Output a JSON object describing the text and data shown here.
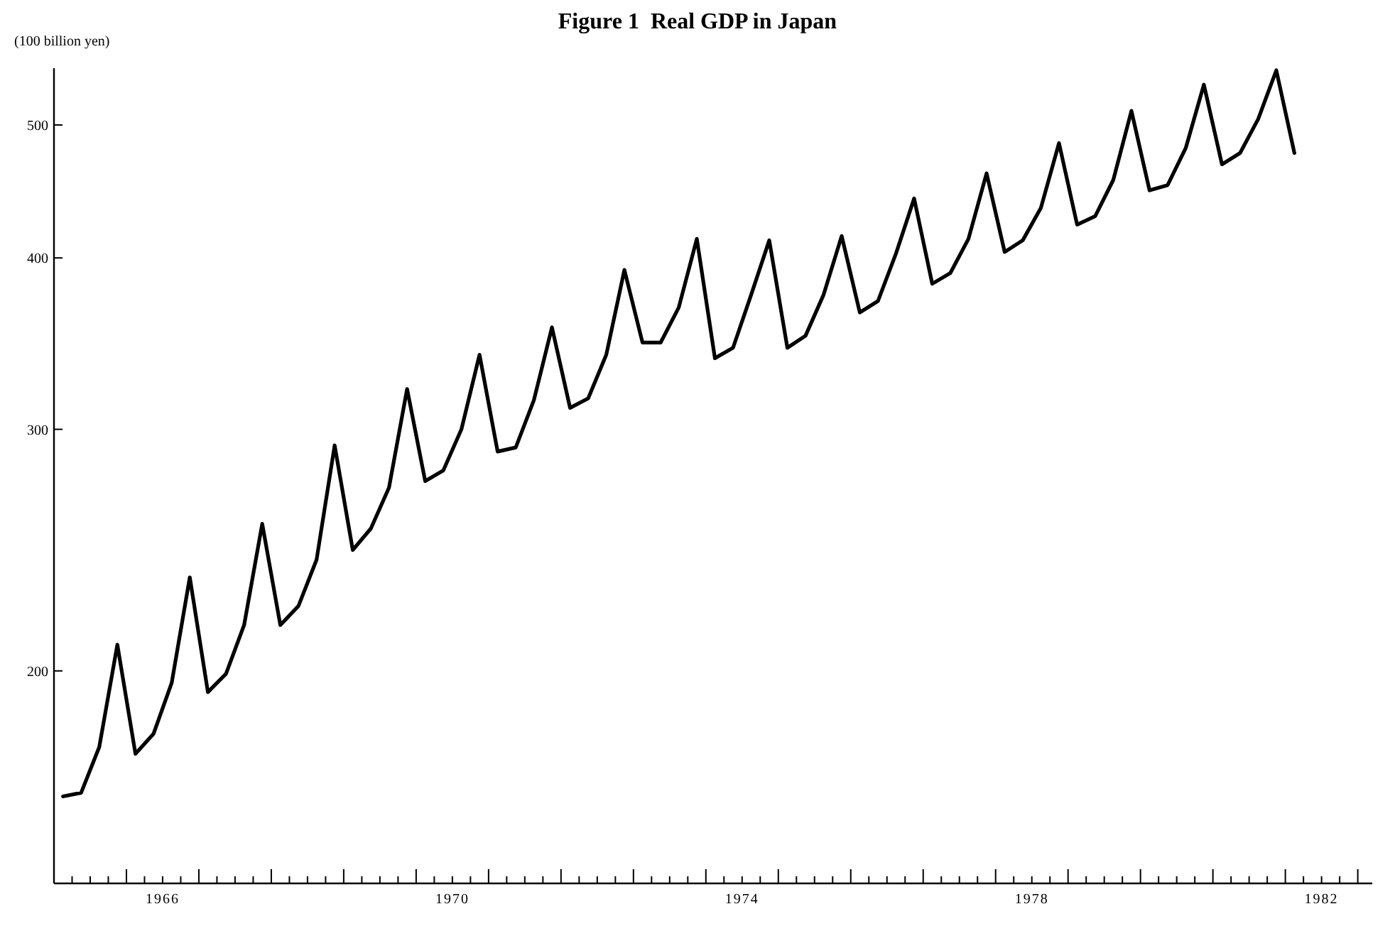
{
  "chart_data": {
    "type": "line",
    "title": "Figure 1  Real GDP in Japan",
    "ylabel": "(100 billion yen)",
    "x": [
      1965.125,
      1965.375,
      1965.625,
      1965.875,
      1966.125,
      1966.375,
      1966.625,
      1966.875,
      1967.125,
      1967.375,
      1967.625,
      1967.875,
      1968.125,
      1968.375,
      1968.625,
      1968.875,
      1969.125,
      1969.375,
      1969.625,
      1969.875,
      1970.125,
      1970.375,
      1970.625,
      1970.875,
      1971.125,
      1971.375,
      1971.625,
      1971.875,
      1972.125,
      1972.375,
      1972.625,
      1972.875,
      1973.125,
      1973.375,
      1973.625,
      1973.875,
      1974.125,
      1974.375,
      1974.625,
      1974.875,
      1975.125,
      1975.375,
      1975.625,
      1975.875,
      1976.125,
      1976.375,
      1976.625,
      1976.875,
      1977.125,
      1977.375,
      1977.625,
      1977.875,
      1978.125,
      1978.375,
      1978.625,
      1978.875,
      1979.125,
      1979.375,
      1979.625,
      1979.875,
      1980.125,
      1980.375,
      1980.625,
      1980.875,
      1981.125,
      1981.375,
      1981.625,
      1981.875,
      1982.125
    ],
    "series": [
      {
        "color": "#000000",
        "values": [
          162,
          163,
          176,
          209,
          174,
          180,
          196,
          234,
          193,
          199,
          216,
          256,
          216,
          223,
          241,
          292,
          245,
          254,
          272,
          321,
          275,
          280,
          300,
          340,
          289,
          291,
          315,
          356,
          311,
          316,
          340,
          392,
          347,
          347,
          368,
          413,
          338,
          344,
          376,
          412,
          344,
          351,
          376,
          415,
          365,
          372,
          403,
          442,
          383,
          390,
          413,
          461,
          404,
          412,
          435,
          485,
          423,
          429,
          456,
          512,
          448,
          452,
          481,
          535,
          468,
          477,
          505,
          548,
          477
        ]
      }
    ],
    "log": true,
    "ylim": [
      140,
      550
    ],
    "yticks": [
      200,
      300,
      400,
      500
    ],
    "xlim": [
      1965,
      1983.2
    ],
    "xticks": [
      {
        "value": 1965,
        "label": null
      },
      {
        "value": 1965.25,
        "label": null
      },
      {
        "value": 1965.5,
        "label": null
      },
      {
        "value": 1965.75,
        "label": null
      },
      {
        "value": 1966,
        "label": null
      },
      {
        "value": 1966.25,
        "label": null
      },
      {
        "value": 1966.5,
        "label": "1966"
      },
      {
        "value": 1966.75,
        "label": null
      },
      {
        "value": 1967,
        "label": null
      },
      {
        "value": 1967.25,
        "label": null
      },
      {
        "value": 1967.5,
        "label": null
      },
      {
        "value": 1967.75,
        "label": null
      },
      {
        "value": 1968,
        "label": null
      },
      {
        "value": 1968.25,
        "label": null
      },
      {
        "value": 1968.5,
        "label": null
      },
      {
        "value": 1968.75,
        "label": null
      },
      {
        "value": 1969,
        "label": null
      },
      {
        "value": 1969.25,
        "label": null
      },
      {
        "value": 1969.5,
        "label": null
      },
      {
        "value": 1969.75,
        "label": null
      },
      {
        "value": 1970,
        "label": null
      },
      {
        "value": 1970.25,
        "label": null
      },
      {
        "value": 1970.5,
        "label": "1970"
      },
      {
        "value": 1970.75,
        "label": null
      },
      {
        "value": 1971,
        "label": null
      },
      {
        "value": 1971.25,
        "label": null
      },
      {
        "value": 1971.5,
        "label": null
      },
      {
        "value": 1971.75,
        "label": null
      },
      {
        "value": 1972,
        "label": null
      },
      {
        "value": 1972.25,
        "label": null
      },
      {
        "value": 1972.5,
        "label": null
      },
      {
        "value": 1972.75,
        "label": null
      },
      {
        "value": 1973,
        "label": null
      },
      {
        "value": 1973.25,
        "label": null
      },
      {
        "value": 1973.5,
        "label": null
      },
      {
        "value": 1973.75,
        "label": null
      },
      {
        "value": 1974,
        "label": null
      },
      {
        "value": 1974.25,
        "label": null
      },
      {
        "value": 1974.5,
        "label": "1974"
      },
      {
        "value": 1974.75,
        "label": null
      },
      {
        "value": 1975,
        "label": null
      },
      {
        "value": 1975.25,
        "label": null
      },
      {
        "value": 1975.5,
        "label": null
      },
      {
        "value": 1975.75,
        "label": null
      },
      {
        "value": 1976,
        "label": null
      },
      {
        "value": 1976.25,
        "label": null
      },
      {
        "value": 1976.5,
        "label": null
      },
      {
        "value": 1976.75,
        "label": null
      },
      {
        "value": 1977,
        "label": null
      },
      {
        "value": 1977.25,
        "label": null
      },
      {
        "value": 1977.5,
        "label": null
      },
      {
        "value": 1977.75,
        "label": null
      },
      {
        "value": 1978,
        "label": null
      },
      {
        "value": 1978.25,
        "label": null
      },
      {
        "value": 1978.5,
        "label": "1978"
      },
      {
        "value": 1978.75,
        "label": null
      },
      {
        "value": 1979,
        "label": null
      },
      {
        "value": 1979.25,
        "label": null
      },
      {
        "value": 1979.5,
        "label": null
      },
      {
        "value": 1979.75,
        "label": null
      },
      {
        "value": 1980,
        "label": null
      },
      {
        "value": 1980.25,
        "label": null
      },
      {
        "value": 1980.5,
        "label": null
      },
      {
        "value": 1980.75,
        "label": null
      },
      {
        "value": 1981,
        "label": null
      },
      {
        "value": 1981.25,
        "label": null
      },
      {
        "value": 1981.5,
        "label": null
      },
      {
        "value": 1981.75,
        "label": null
      },
      {
        "value": 1982,
        "label": null
      },
      {
        "value": 1982.25,
        "label": null
      },
      {
        "value": 1982.5,
        "label": "1982"
      },
      {
        "value": 1982.75,
        "label": null
      },
      {
        "value": 1983,
        "label": null
      }
    ],
    "grid": false,
    "marker": "none",
    "line_style": "solid"
  }
}
